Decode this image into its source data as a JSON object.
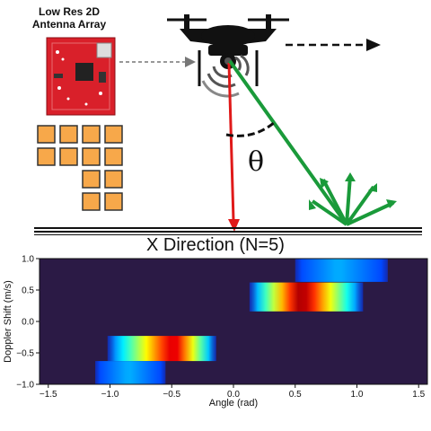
{
  "figure": {
    "array_label": "Low Res 2D\nAntenna Array",
    "theta_symbol": "θ"
  },
  "chart_data": {
    "type": "heatmap",
    "title": "X Direction (N=5)",
    "xlabel": "Angle (rad)",
    "ylabel": "Doppler Shift (m/s)",
    "xlim": [
      -1.571,
      1.571
    ],
    "ylim": [
      -1.0,
      1.0
    ],
    "xticks": [
      -1.5,
      -1.0,
      -0.5,
      0.0,
      0.5,
      1.0,
      1.5
    ],
    "xtick_labels": [
      "−1.5",
      "−1.0",
      "−0.5",
      "0.0",
      "0.5",
      "1.0",
      "1.5"
    ],
    "yticks": [
      1.0,
      0.5,
      0.0,
      -0.5,
      -1.0
    ],
    "ytick_labels": [
      "1.0",
      "0.5",
      "0.0",
      "−0.5",
      "−1.0"
    ],
    "background_color": "#2b1a45",
    "blobs": [
      {
        "angle_min": 0.5,
        "angle_max": 1.25,
        "doppler_min": 0.63,
        "doppler_max": 1.0,
        "peak_angle": 0.85,
        "peak_level": 0.3
      },
      {
        "angle_min": 0.13,
        "angle_max": 1.05,
        "doppler_min": 0.16,
        "doppler_max": 0.62,
        "peak_angle": 0.55,
        "peak_level": 1.0
      },
      {
        "angle_min": -1.02,
        "angle_max": -0.14,
        "doppler_min": -0.63,
        "doppler_max": -0.23,
        "peak_angle": -0.48,
        "peak_level": 0.95
      },
      {
        "angle_min": -1.12,
        "angle_max": -0.55,
        "doppler_min": -1.0,
        "doppler_max": -0.63,
        "peak_angle": -0.85,
        "peak_level": 0.3
      }
    ]
  }
}
